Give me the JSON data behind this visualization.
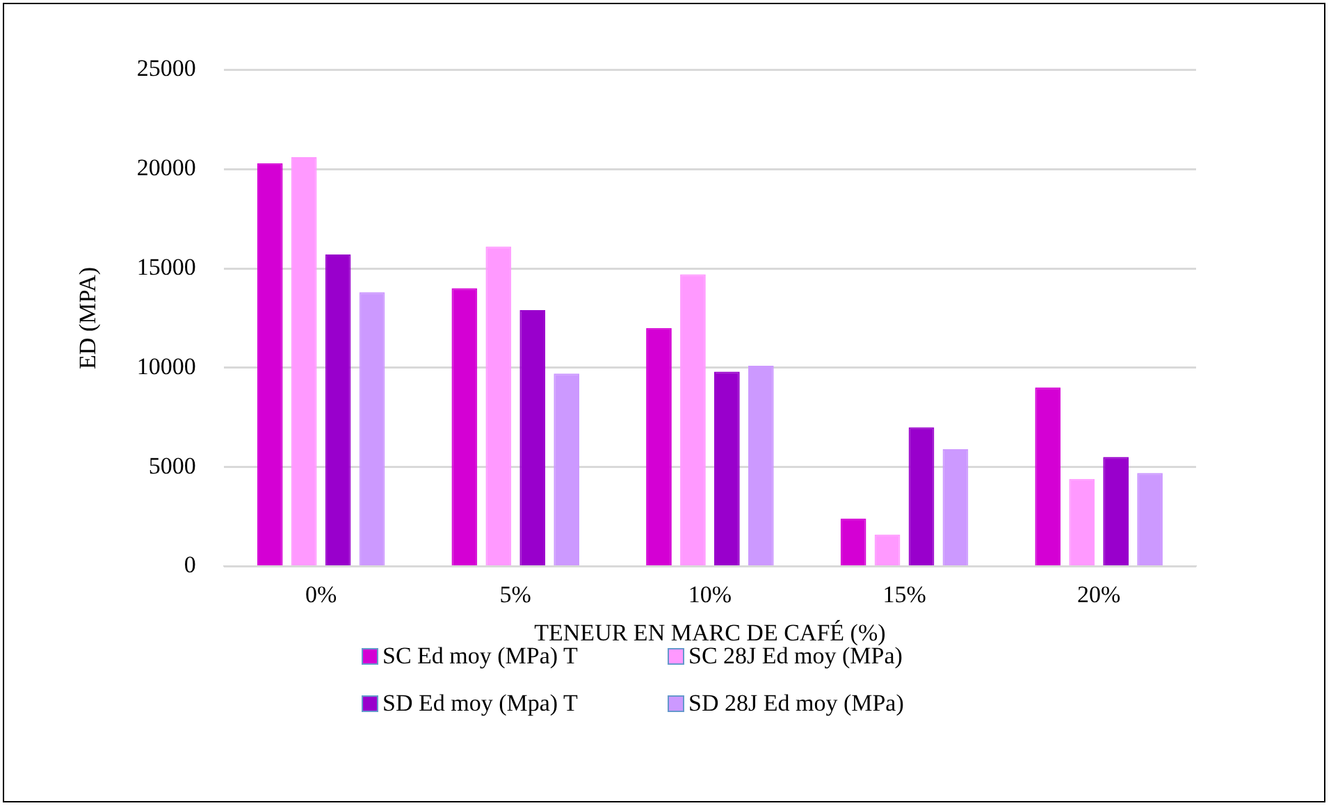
{
  "chart_data": {
    "type": "bar",
    "xlabel": "TENEUR EN MARC DE CAFÉ (%)",
    "ylabel": "ED (MPA)",
    "categories": [
      "0%",
      "5%",
      "10%",
      "15%",
      "20%"
    ],
    "series": [
      {
        "name": "SC Ed moy (MPa) T",
        "color": "#d400d4",
        "values": [
          20300,
          14000,
          12000,
          2400,
          9000
        ]
      },
      {
        "name": "SC 28J Ed moy (MPa)",
        "color": "#ff99ff",
        "values": [
          20600,
          16100,
          14700,
          1600,
          4400
        ]
      },
      {
        "name": "SD Ed moy (Mpa) T",
        "color": "#9900cc",
        "values": [
          15700,
          12900,
          9800,
          7000,
          5500
        ]
      },
      {
        "name": "SD 28J Ed moy (MPa)",
        "color": "#cc99ff",
        "values": [
          13800,
          9700,
          10100,
          5900,
          4700
        ]
      }
    ],
    "ylim": [
      0,
      25000
    ],
    "yticks": [
      0,
      5000,
      10000,
      15000,
      20000,
      25000
    ],
    "grid": "y",
    "legend": "bottom"
  }
}
